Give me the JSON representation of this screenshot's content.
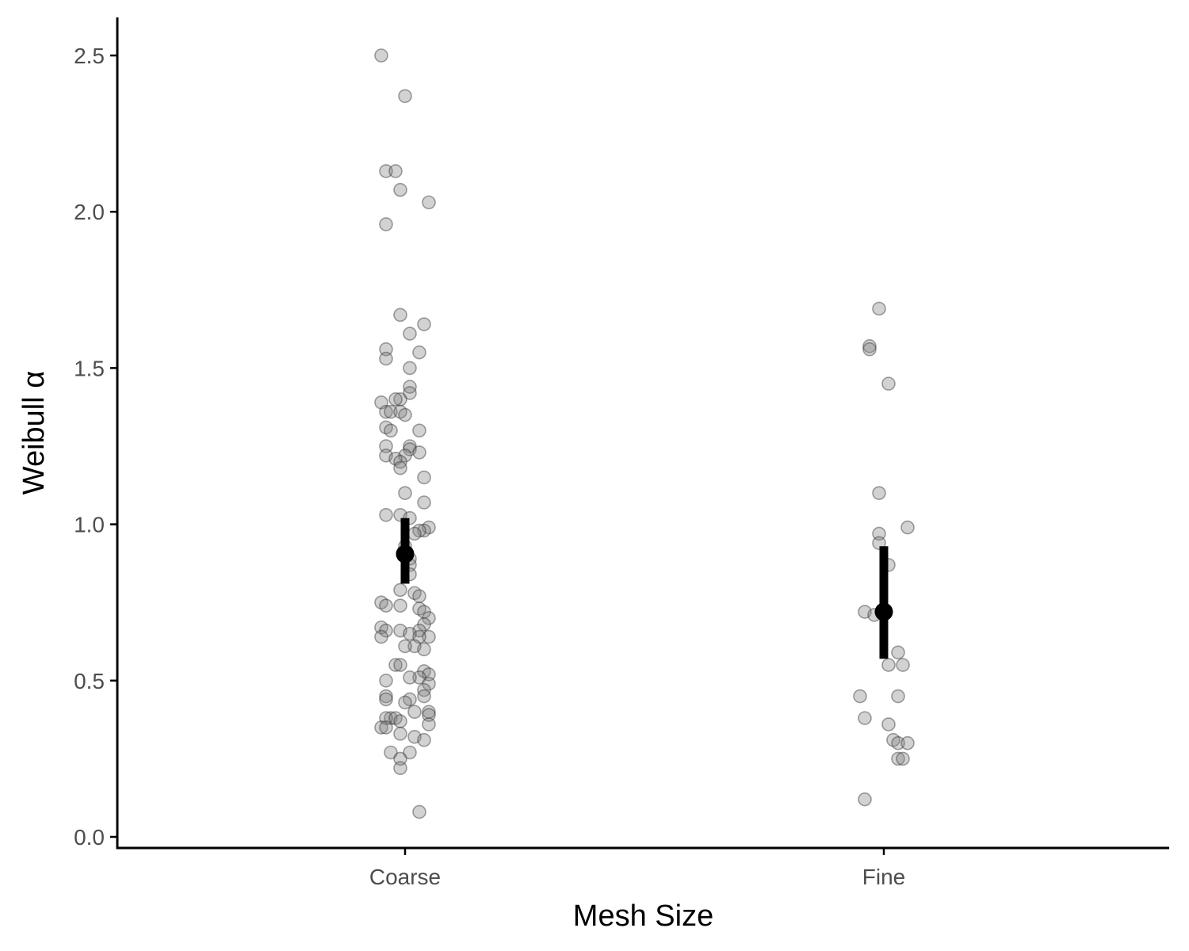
{
  "chart_data": {
    "type": "scatter",
    "xlabel": "Mesh Size",
    "ylabel": "Weibull α",
    "categories": [
      "Coarse",
      "Fine"
    ],
    "ylim": [
      -0.02,
      2.62
    ],
    "yticks": [
      0.0,
      0.5,
      1.0,
      1.5,
      2.0,
      2.5
    ],
    "ytick_labels": [
      "0.0",
      "0.5",
      "1.0",
      "1.5",
      "2.0",
      "2.5"
    ],
    "grid": false,
    "legend": "none",
    "point_color": "#7f7f7f",
    "summary_color": "#000000",
    "series": [
      {
        "category": "Coarse",
        "points": [
          {
            "x": -0.05,
            "y": 2.5
          },
          {
            "x": 0.0,
            "y": 2.37
          },
          {
            "x": -0.04,
            "y": 2.13
          },
          {
            "x": -0.02,
            "y": 2.13
          },
          {
            "x": -0.01,
            "y": 2.07
          },
          {
            "x": 0.05,
            "y": 2.03
          },
          {
            "x": -0.04,
            "y": 1.96
          },
          {
            "x": -0.01,
            "y": 1.67
          },
          {
            "x": 0.04,
            "y": 1.64
          },
          {
            "x": 0.01,
            "y": 1.61
          },
          {
            "x": -0.04,
            "y": 1.56
          },
          {
            "x": 0.03,
            "y": 1.55
          },
          {
            "x": -0.04,
            "y": 1.53
          },
          {
            "x": 0.01,
            "y": 1.5
          },
          {
            "x": 0.01,
            "y": 1.44
          },
          {
            "x": 0.01,
            "y": 1.42
          },
          {
            "x": -0.01,
            "y": 1.4
          },
          {
            "x": -0.02,
            "y": 1.4
          },
          {
            "x": -0.05,
            "y": 1.39
          },
          {
            "x": -0.04,
            "y": 1.36
          },
          {
            "x": -0.03,
            "y": 1.36
          },
          {
            "x": -0.01,
            "y": 1.36
          },
          {
            "x": 0.0,
            "y": 1.35
          },
          {
            "x": -0.04,
            "y": 1.31
          },
          {
            "x": -0.03,
            "y": 1.3
          },
          {
            "x": 0.03,
            "y": 1.3
          },
          {
            "x": 0.01,
            "y": 1.25
          },
          {
            "x": -0.04,
            "y": 1.25
          },
          {
            "x": 0.01,
            "y": 1.24
          },
          {
            "x": 0.03,
            "y": 1.23
          },
          {
            "x": -0.04,
            "y": 1.22
          },
          {
            "x": 0.0,
            "y": 1.22
          },
          {
            "x": -0.02,
            "y": 1.21
          },
          {
            "x": -0.01,
            "y": 1.2
          },
          {
            "x": -0.01,
            "y": 1.18
          },
          {
            "x": 0.04,
            "y": 1.15
          },
          {
            "x": 0.0,
            "y": 1.1
          },
          {
            "x": 0.04,
            "y": 1.07
          },
          {
            "x": -0.04,
            "y": 1.03
          },
          {
            "x": -0.01,
            "y": 1.03
          },
          {
            "x": 0.01,
            "y": 1.02
          },
          {
            "x": 0.05,
            "y": 0.99
          },
          {
            "x": 0.04,
            "y": 0.98
          },
          {
            "x": 0.03,
            "y": 0.98
          },
          {
            "x": 0.02,
            "y": 0.97
          },
          {
            "x": 0.0,
            "y": 0.93
          },
          {
            "x": 0.01,
            "y": 0.89
          },
          {
            "x": 0.01,
            "y": 0.87
          },
          {
            "x": 0.01,
            "y": 0.84
          },
          {
            "x": -0.01,
            "y": 0.79
          },
          {
            "x": 0.02,
            "y": 0.78
          },
          {
            "x": 0.03,
            "y": 0.77
          },
          {
            "x": -0.05,
            "y": 0.75
          },
          {
            "x": -0.04,
            "y": 0.74
          },
          {
            "x": -0.01,
            "y": 0.74
          },
          {
            "x": 0.03,
            "y": 0.73
          },
          {
            "x": 0.04,
            "y": 0.72
          },
          {
            "x": 0.05,
            "y": 0.7
          },
          {
            "x": 0.04,
            "y": 0.68
          },
          {
            "x": -0.05,
            "y": 0.67
          },
          {
            "x": -0.04,
            "y": 0.66
          },
          {
            "x": -0.01,
            "y": 0.66
          },
          {
            "x": 0.03,
            "y": 0.66
          },
          {
            "x": 0.01,
            "y": 0.65
          },
          {
            "x": 0.05,
            "y": 0.64
          },
          {
            "x": 0.03,
            "y": 0.64
          },
          {
            "x": -0.05,
            "y": 0.64
          },
          {
            "x": 0.02,
            "y": 0.61
          },
          {
            "x": 0.0,
            "y": 0.61
          },
          {
            "x": 0.04,
            "y": 0.6
          },
          {
            "x": -0.02,
            "y": 0.55
          },
          {
            "x": -0.01,
            "y": 0.55
          },
          {
            "x": 0.04,
            "y": 0.53
          },
          {
            "x": 0.05,
            "y": 0.52
          },
          {
            "x": 0.03,
            "y": 0.51
          },
          {
            "x": 0.01,
            "y": 0.51
          },
          {
            "x": -0.04,
            "y": 0.5
          },
          {
            "x": 0.05,
            "y": 0.49
          },
          {
            "x": 0.04,
            "y": 0.47
          },
          {
            "x": 0.04,
            "y": 0.45
          },
          {
            "x": -0.04,
            "y": 0.45
          },
          {
            "x": 0.01,
            "y": 0.44
          },
          {
            "x": -0.04,
            "y": 0.44
          },
          {
            "x": 0.0,
            "y": 0.43
          },
          {
            "x": 0.02,
            "y": 0.4
          },
          {
            "x": 0.05,
            "y": 0.4
          },
          {
            "x": 0.05,
            "y": 0.39
          },
          {
            "x": -0.03,
            "y": 0.38
          },
          {
            "x": -0.04,
            "y": 0.38
          },
          {
            "x": -0.02,
            "y": 0.38
          },
          {
            "x": -0.01,
            "y": 0.37
          },
          {
            "x": 0.05,
            "y": 0.36
          },
          {
            "x": -0.05,
            "y": 0.35
          },
          {
            "x": -0.04,
            "y": 0.35
          },
          {
            "x": -0.01,
            "y": 0.33
          },
          {
            "x": 0.02,
            "y": 0.32
          },
          {
            "x": 0.04,
            "y": 0.31
          },
          {
            "x": -0.03,
            "y": 0.27
          },
          {
            "x": 0.01,
            "y": 0.27
          },
          {
            "x": -0.01,
            "y": 0.25
          },
          {
            "x": -0.01,
            "y": 0.22
          },
          {
            "x": 0.03,
            "y": 0.08
          }
        ],
        "mean": 0.905,
        "ci": [
          0.81,
          1.02
        ]
      },
      {
        "category": "Fine",
        "points": [
          {
            "x": -0.01,
            "y": 1.69
          },
          {
            "x": -0.03,
            "y": 1.57
          },
          {
            "x": -0.03,
            "y": 1.56
          },
          {
            "x": 0.01,
            "y": 1.45
          },
          {
            "x": -0.01,
            "y": 1.1
          },
          {
            "x": 0.05,
            "y": 0.99
          },
          {
            "x": -0.01,
            "y": 0.97
          },
          {
            "x": -0.01,
            "y": 0.94
          },
          {
            "x": 0.01,
            "y": 0.87
          },
          {
            "x": -0.04,
            "y": 0.72
          },
          {
            "x": -0.02,
            "y": 0.71
          },
          {
            "x": 0.03,
            "y": 0.59
          },
          {
            "x": 0.01,
            "y": 0.55
          },
          {
            "x": 0.04,
            "y": 0.55
          },
          {
            "x": -0.05,
            "y": 0.45
          },
          {
            "x": 0.03,
            "y": 0.45
          },
          {
            "x": -0.04,
            "y": 0.38
          },
          {
            "x": 0.01,
            "y": 0.36
          },
          {
            "x": 0.02,
            "y": 0.31
          },
          {
            "x": 0.03,
            "y": 0.3
          },
          {
            "x": 0.05,
            "y": 0.3
          },
          {
            "x": 0.03,
            "y": 0.25
          },
          {
            "x": 0.04,
            "y": 0.25
          },
          {
            "x": -0.04,
            "y": 0.12
          }
        ],
        "mean": 0.72,
        "ci": [
          0.57,
          0.93
        ]
      }
    ]
  }
}
